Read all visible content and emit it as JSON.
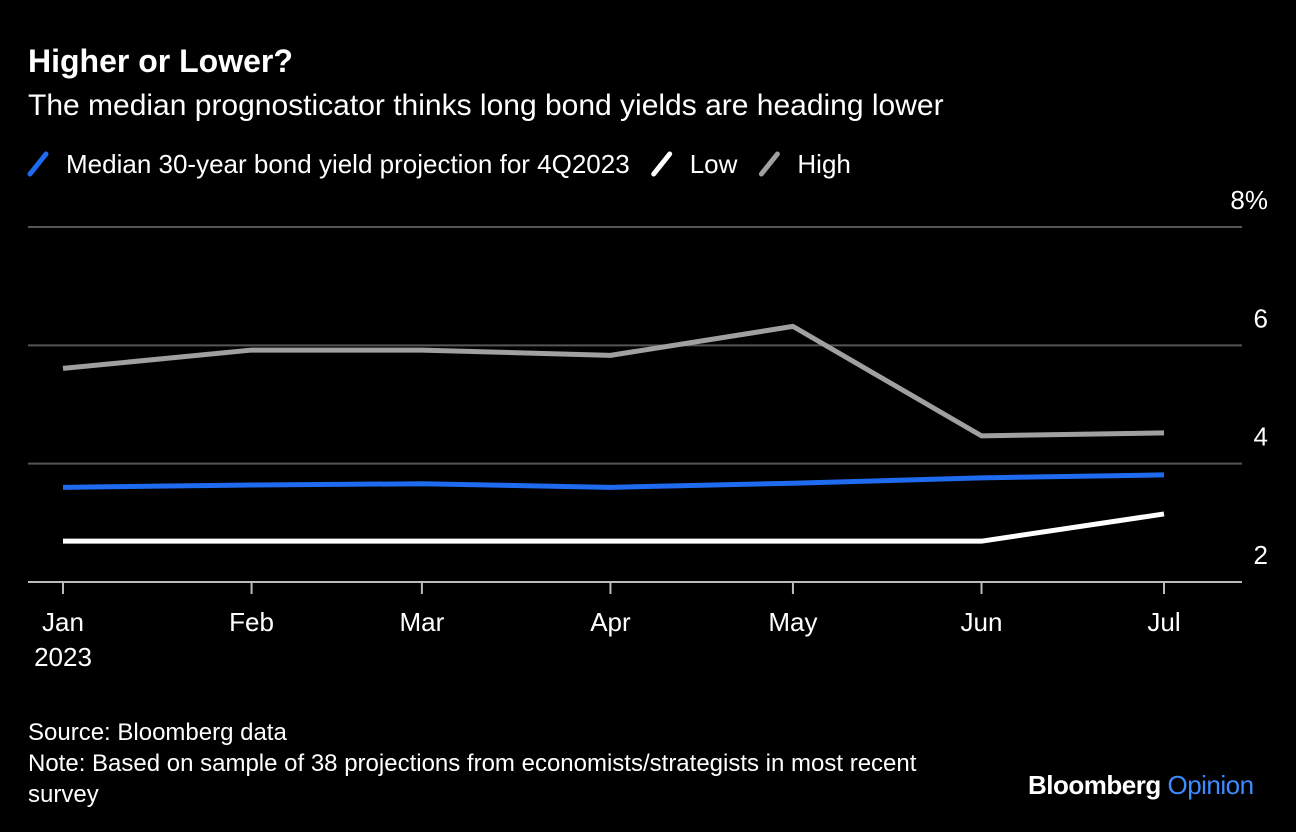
{
  "chart_data": {
    "type": "line",
    "title": "Higher or Lower?",
    "subtitle": "The median prognosticator thinks long bond yields are heading lower",
    "x": [
      "2023-01",
      "2023-02",
      "2023-03",
      "2023-04",
      "2023-05",
      "2023-06",
      "2023-07"
    ],
    "xticks": [
      {
        "value": "2023-01",
        "label": "Jan"
      },
      {
        "value": "2023-02",
        "label": "Feb"
      },
      {
        "value": "2023-03",
        "label": "Mar"
      },
      {
        "value": "2023-04",
        "label": "Apr"
      },
      {
        "value": "2023-05",
        "label": "May"
      },
      {
        "value": "2023-06",
        "label": "Jun"
      },
      {
        "value": "2023-07",
        "label": "Jul"
      }
    ],
    "x_year_label": "2023",
    "series": [
      {
        "name": "Median 30-year bond yield projection for 4Q2023",
        "color": "#1f6bf0",
        "values": [
          3.6,
          3.64,
          3.66,
          3.6,
          3.67,
          3.76,
          3.81
        ]
      },
      {
        "name": "Low",
        "color": "#ffffff",
        "values": [
          2.69,
          2.69,
          2.69,
          2.69,
          2.69,
          2.69,
          3.15
        ]
      },
      {
        "name": "High",
        "color": "#a0a0a0",
        "values": [
          5.61,
          5.92,
          5.92,
          5.83,
          6.32,
          4.47,
          4.52
        ]
      }
    ],
    "ylim": [
      2,
      8
    ],
    "yticks": [
      2,
      4,
      6,
      {
        "value": 8,
        "label": "8%"
      }
    ],
    "grid": true,
    "source": "Source: Bloomberg data",
    "note": "Note: Based on sample of 38 projections from economists/strategists in most recent survey",
    "brand": "Bloomberg",
    "brand_suffix": "Opinion"
  }
}
